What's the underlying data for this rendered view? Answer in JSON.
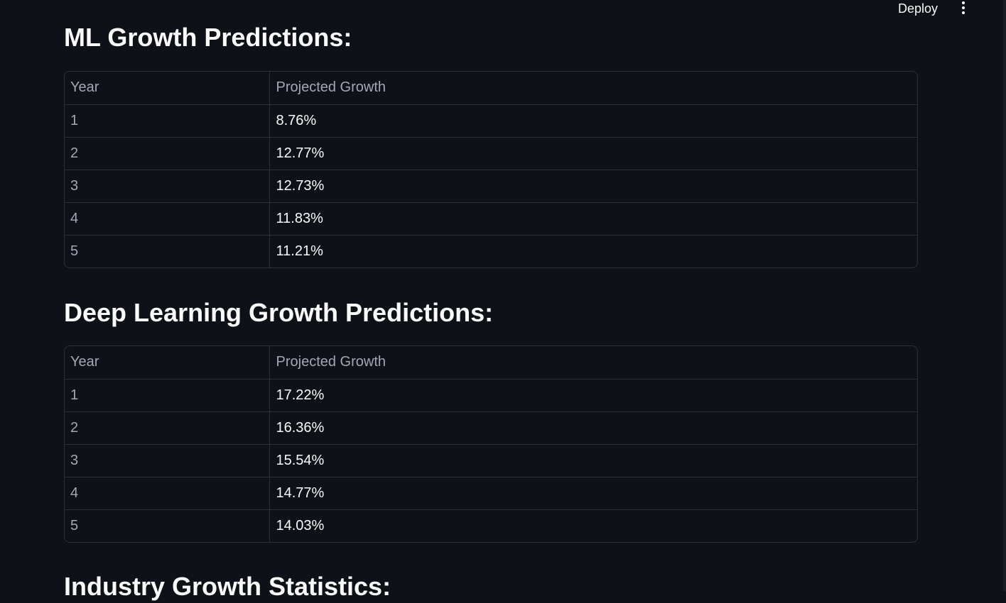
{
  "header": {
    "deploy_label": "Deploy",
    "menu_icon": "more-vertical-icon"
  },
  "sections": [
    {
      "title": "ML Growth Predictions:",
      "columns": [
        "Year",
        "Projected Growth"
      ],
      "rows": [
        {
          "year": "1",
          "growth": "8.76%"
        },
        {
          "year": "2",
          "growth": "12.77%"
        },
        {
          "year": "3",
          "growth": "12.73%"
        },
        {
          "year": "4",
          "growth": "11.83%"
        },
        {
          "year": "5",
          "growth": "11.21%"
        }
      ]
    },
    {
      "title": "Deep Learning Growth Predictions:",
      "columns": [
        "Year",
        "Projected Growth"
      ],
      "rows": [
        {
          "year": "1",
          "growth": "17.22%"
        },
        {
          "year": "2",
          "growth": "16.36%"
        },
        {
          "year": "3",
          "growth": "15.54%"
        },
        {
          "year": "4",
          "growth": "14.77%"
        },
        {
          "year": "5",
          "growth": "14.03%"
        }
      ]
    },
    {
      "title": "Industry Growth Statistics:"
    }
  ],
  "colors": {
    "background": "#0e1117",
    "text": "#fafafa",
    "muted_text": "#a3a8b4",
    "border": "#2b2f38"
  }
}
